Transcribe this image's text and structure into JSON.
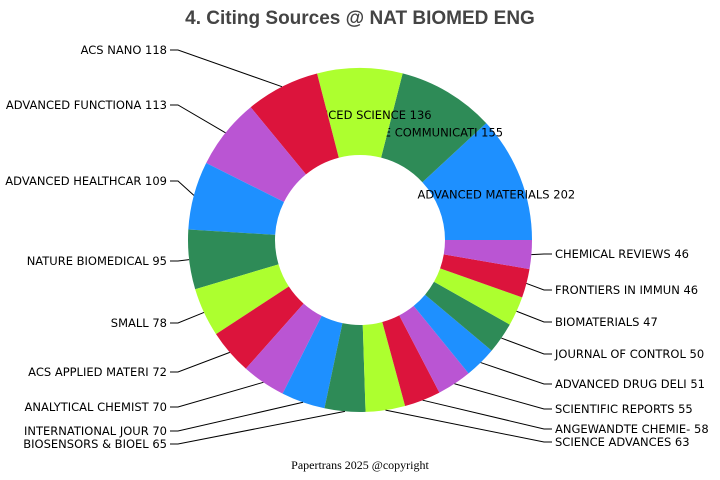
{
  "chart_data": {
    "type": "donut",
    "title": "4. Citing Sources @ NAT BIOMED ENG",
    "categories": [
      "ADVANCED MATERIALS",
      "NATURE COMMUNICATI",
      "ADVANCED SCIENCE",
      "ACS NANO",
      "ADVANCED FUNCTIONA",
      "ADVANCED HEALTHCAR",
      "NATURE BIOMEDICAL ",
      "SMALL",
      "ACS APPLIED MATERI",
      "ANALYTICAL CHEMIST",
      "INTERNATIONAL JOUR",
      "BIOSENSORS & BIOEL",
      "SCIENCE ADVANCES",
      "ANGEWANDTE CHEMIE-",
      "SCIENTIFIC REPORTS",
      "ADVANCED DRUG DELI",
      "JOURNAL OF CONTROL",
      "BIOMATERIALS",
      "FRONTIERS IN IMMUN",
      "CHEMICAL REVIEWS"
    ],
    "values": [
      202,
      155,
      136,
      118,
      113,
      109,
      95,
      78,
      72,
      70,
      70,
      65,
      63,
      58,
      55,
      51,
      50,
      47,
      46,
      46
    ],
    "colors": [
      "#1e90ff",
      "#2e8b57",
      "#adff2f",
      "#dc143c",
      "#ba55d3"
    ],
    "footer": "Papertrans 2025 @copyright"
  }
}
